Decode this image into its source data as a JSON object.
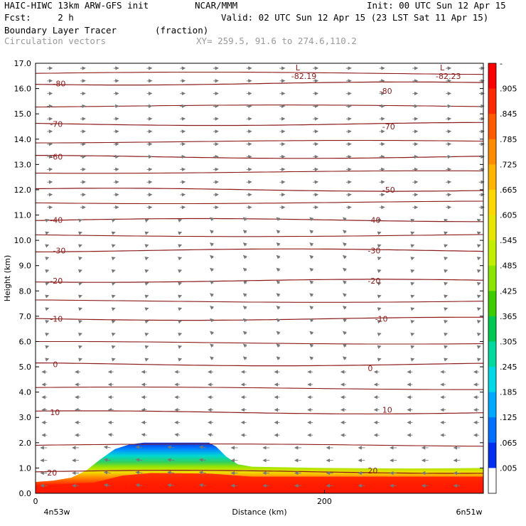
{
  "header": {
    "left1": "HAIC-HIWC 13km ARW-GFS init",
    "org": "NCAR/MMM",
    "init": "Init: 00 UTC Sun 12 Apr 15",
    "left2": "Fcst:     2 h",
    "valid": "Valid: 02 UTC Sun 12 Apr 15 (23 LST Sat 11 Apr 15)",
    "field": "Boundary Layer Tracer",
    "units": "(fraction)",
    "vectors": "Circulation vectors",
    "xy": "XY= 259.5, 91.6 to 274.6,110.2"
  },
  "chart_data": {
    "type": "heatmap",
    "ylabel": "Height (km)",
    "xlabel": "Distance (km)",
    "ylim": [
      0,
      17
    ],
    "yticks": [
      "0.0",
      "1.0",
      "2.0",
      "3.0",
      "4.0",
      "5.0",
      "6.0",
      "7.0",
      "8.0",
      "9.0",
      "10.0",
      "11.0",
      "12.0",
      "13.0",
      "14.0",
      "15.0",
      "16.0",
      "17.0"
    ],
    "xlim": [
      0,
      310
    ],
    "xticks": [
      {
        "x": 0,
        "label": "0"
      },
      {
        "x": 200,
        "label": "200"
      }
    ],
    "x_endpoints": {
      "left": "4n53w",
      "right": "6n51w"
    },
    "colorbar_labels": [
      "-",
      ".905",
      ".845",
      ".785",
      ".725",
      ".665",
      ".605",
      ".545",
      ".485",
      ".425",
      ".365",
      ".305",
      ".245",
      ".185",
      ".125",
      ".065",
      ".005"
    ],
    "colors": [
      "#ff0000",
      "#ff2a00",
      "#ff5a00",
      "#ff8c00",
      "#ffb400",
      "#ffd700",
      "#e6e600",
      "#c0ef00",
      "#8ae600",
      "#3ccc00",
      "#00c850",
      "#00d8a0",
      "#00d8e8",
      "#00a8ff",
      "#0070ff",
      "#0030f0",
      "#ffffff"
    ],
    "tracer_profile": [
      {
        "x": 0,
        "top": 0.45
      },
      {
        "x": 12,
        "top": 0.5
      },
      {
        "x": 25,
        "top": 0.62
      },
      {
        "x": 35,
        "top": 0.9
      },
      {
        "x": 45,
        "top": 1.35
      },
      {
        "x": 55,
        "top": 1.75
      },
      {
        "x": 65,
        "top": 1.93
      },
      {
        "x": 75,
        "top": 2.0
      },
      {
        "x": 120,
        "top": 2.0
      },
      {
        "x": 125,
        "top": 1.85
      },
      {
        "x": 132,
        "top": 1.45
      },
      {
        "x": 140,
        "top": 1.15
      },
      {
        "x": 150,
        "top": 1.05
      },
      {
        "x": 200,
        "top": 1.0
      },
      {
        "x": 260,
        "top": 0.98
      },
      {
        "x": 310,
        "top": 1.0
      }
    ],
    "isotherms": [
      {
        "value": "20",
        "y": 0.85
      },
      {
        "value": "10",
        "y": 3.2
      },
      {
        "value": "0",
        "y": 5.1
      },
      {
        "value": "-10",
        "y": 6.9
      },
      {
        "value": "-20",
        "y": 8.4
      },
      {
        "value": "-30",
        "y": 9.6
      },
      {
        "value": "-40",
        "y": 10.8
      },
      {
        "value": "-50",
        "y": 12.0
      },
      {
        "value": "-60",
        "y": 13.3
      },
      {
        "value": "-70",
        "y": 14.6
      },
      {
        "value": "-80",
        "y": 16.2
      }
    ],
    "isotherm_labels": [
      {
        "x": 8,
        "y": 0.82,
        "text": "20"
      },
      {
        "x": 230,
        "y": 0.9,
        "text": "20"
      },
      {
        "x": 10,
        "y": 3.2,
        "text": "10"
      },
      {
        "x": 240,
        "y": 3.3,
        "text": "10"
      },
      {
        "x": 12,
        "y": 5.1,
        "text": "0"
      },
      {
        "x": 230,
        "y": 4.95,
        "text": "0"
      },
      {
        "x": 10,
        "y": 6.9,
        "text": "-10"
      },
      {
        "x": 235,
        "y": 6.9,
        "text": "-10"
      },
      {
        "x": 10,
        "y": 8.4,
        "text": "-20"
      },
      {
        "x": 230,
        "y": 8.4,
        "text": "-20"
      },
      {
        "x": 12,
        "y": 9.6,
        "text": "-30"
      },
      {
        "x": 230,
        "y": 9.6,
        "text": "-30"
      },
      {
        "x": 10,
        "y": 10.8,
        "text": "-40"
      },
      {
        "x": 230,
        "y": 10.8,
        "text": "-40"
      },
      {
        "x": 240,
        "y": 12.0,
        "text": "-50"
      },
      {
        "x": 10,
        "y": 13.3,
        "text": "-60"
      },
      {
        "x": 10,
        "y": 14.6,
        "text": "-70"
      },
      {
        "x": 240,
        "y": 14.5,
        "text": "-70"
      },
      {
        "x": 12,
        "y": 16.2,
        "text": "-80"
      },
      {
        "x": 238,
        "y": 15.9,
        "text": "-80"
      }
    ],
    "lows": [
      {
        "x": 180,
        "y": 16.6,
        "marker": "L",
        "value": "-82.19"
      },
      {
        "x": 280,
        "y": 16.6,
        "marker": "L",
        "value": "-82.23"
      }
    ]
  }
}
